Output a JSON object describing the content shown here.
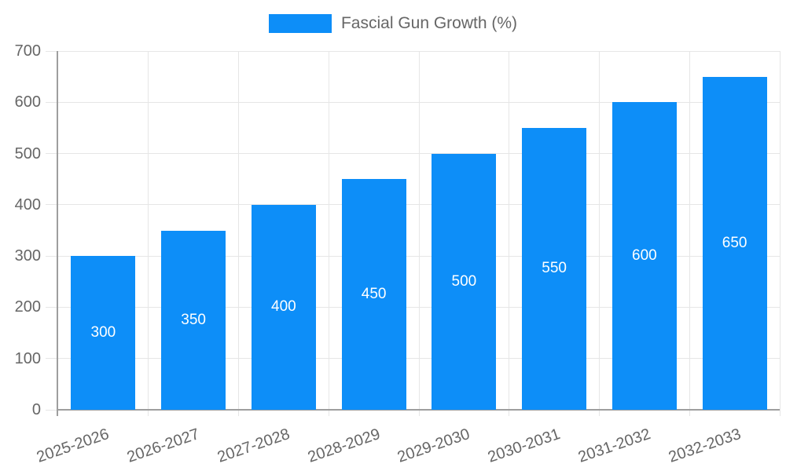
{
  "chart_data": {
    "type": "bar",
    "title": "Fascial Gun Growth (%)",
    "legend": {
      "label": "Fascial Gun Growth (%)",
      "position": "top"
    },
    "categories": [
      "2025-2026",
      "2026-2027",
      "2027-2028",
      "2028-2029",
      "2029-2030",
      "2030-2031",
      "2031-2032",
      "2032-2033"
    ],
    "values": [
      300,
      350,
      400,
      450,
      500,
      550,
      600,
      650
    ],
    "bar_value_labels": [
      "300",
      "350",
      "400",
      "450",
      "500",
      "550",
      "600",
      "650"
    ],
    "xlabel": "",
    "ylabel": "",
    "ylim": [
      0,
      700
    ],
    "yticks": [
      0,
      100,
      200,
      300,
      400,
      500,
      600,
      700
    ],
    "grid": true,
    "x_label_rotation_deg": -19,
    "value_label_position": "inside-center",
    "colors": {
      "bar": "#0d8ef8",
      "bar_value_text": "#ffffff",
      "grid_line": "#e6e6e6",
      "axis_line": "#9e9e9e",
      "tick_text": "#666666",
      "legend_text": "#666666",
      "background": "#ffffff"
    }
  }
}
